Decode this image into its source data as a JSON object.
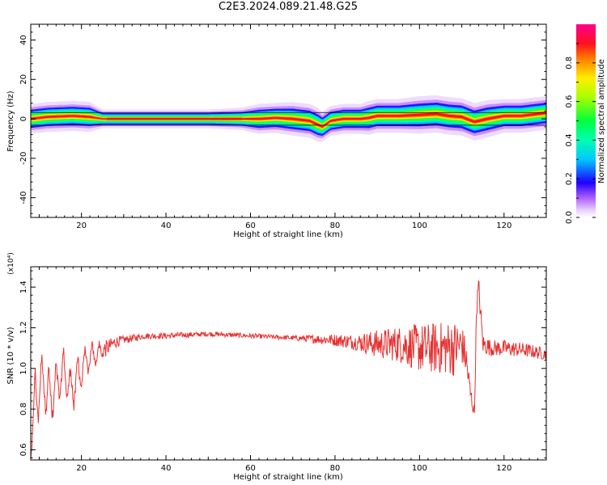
{
  "title": "C2E3.2024.089.21.48.G25",
  "colors": {
    "axis": "#000000",
    "line": "#e83030"
  },
  "chart_data": [
    {
      "type": "heatmap",
      "xlabel": "Height of straight line (km)",
      "ylabel": "Frequency (Hz)",
      "xlim": [
        8,
        130
      ],
      "ylim": [
        -50,
        48
      ],
      "xticks": [
        20,
        40,
        60,
        80,
        100,
        120
      ],
      "yticks": [
        40,
        20,
        0,
        -20,
        -40
      ],
      "colorbar": {
        "label": "Normalized spectral amplitude",
        "ticks": [
          "0.0",
          "0.2",
          "0.4",
          "0.6",
          "0.8"
        ],
        "range": [
          0,
          1
        ]
      },
      "ridge": {
        "x": [
          8,
          12,
          18,
          22,
          25,
          30,
          40,
          50,
          58,
          62,
          66,
          70,
          74,
          76,
          77,
          79,
          82,
          86,
          88,
          90,
          95,
          100,
          104,
          107,
          110,
          113,
          116,
          120,
          124,
          128,
          130
        ],
        "freq": [
          0,
          1,
          1.5,
          1,
          0,
          0,
          0,
          0,
          0,
          0,
          0.5,
          0,
          -1,
          -3,
          -4,
          -1,
          0,
          0,
          0.5,
          1.5,
          1.5,
          2,
          2.5,
          1.5,
          1,
          -1.5,
          0,
          1.5,
          1.5,
          2.5,
          3
        ],
        "halfwidth": [
          4,
          4,
          4,
          4,
          2.5,
          2.5,
          2.5,
          2.5,
          3,
          4,
          4,
          4.5,
          4.5,
          4.5,
          4,
          4,
          4,
          4,
          4.5,
          4.5,
          4.5,
          5,
          5,
          5,
          5,
          5,
          5,
          4.5,
          4.5,
          4.5,
          4.5
        ]
      }
    },
    {
      "type": "line",
      "xlabel": "Height of straight line (km)",
      "ylabel": "SNR (10 * v/v)",
      "exponent_label": "(x10⁴)",
      "xlim": [
        8,
        130
      ],
      "ylim": [
        0.55,
        1.5
      ],
      "xticks": [
        20,
        40,
        60,
        80,
        100,
        120
      ],
      "yticks": [
        0.6,
        0.8,
        1.0,
        1.2,
        1.4
      ],
      "ytick_labels": [
        "0.6",
        "0.8",
        "1.0",
        "1.2",
        "1.4"
      ],
      "envelope": {
        "x": [
          8,
          8.5,
          9,
          10,
          11,
          12,
          13,
          14,
          15,
          16,
          17,
          18,
          19,
          20,
          22,
          24,
          26,
          28,
          30,
          35,
          40,
          50,
          60,
          70,
          80,
          85,
          90,
          95,
          100,
          105,
          108,
          110,
          111,
          112,
          113,
          113.5,
          114,
          115,
          117,
          120,
          125,
          130
        ],
        "mean": [
          0.6,
          0.7,
          0.85,
          0.9,
          0.95,
          0.88,
          0.85,
          0.9,
          0.95,
          0.98,
          0.92,
          0.9,
          0.95,
          1.0,
          1.05,
          1.08,
          1.1,
          1.13,
          1.14,
          1.16,
          1.16,
          1.17,
          1.16,
          1.15,
          1.14,
          1.13,
          1.12,
          1.12,
          1.1,
          1.1,
          1.1,
          1.12,
          1.05,
          0.88,
          0.78,
          1.3,
          1.4,
          1.12,
          1.1,
          1.1,
          1.09,
          1.07
        ],
        "amp": [
          0.05,
          0.12,
          0.15,
          0.14,
          0.13,
          0.14,
          0.12,
          0.13,
          0.12,
          0.12,
          0.11,
          0.11,
          0.11,
          0.1,
          0.07,
          0.05,
          0.04,
          0.03,
          0.02,
          0.015,
          0.015,
          0.012,
          0.012,
          0.012,
          0.03,
          0.04,
          0.07,
          0.09,
          0.12,
          0.13,
          0.14,
          0.1,
          0.09,
          0.06,
          0.03,
          0.05,
          0.06,
          0.05,
          0.04,
          0.04,
          0.035,
          0.03
        ]
      }
    }
  ]
}
